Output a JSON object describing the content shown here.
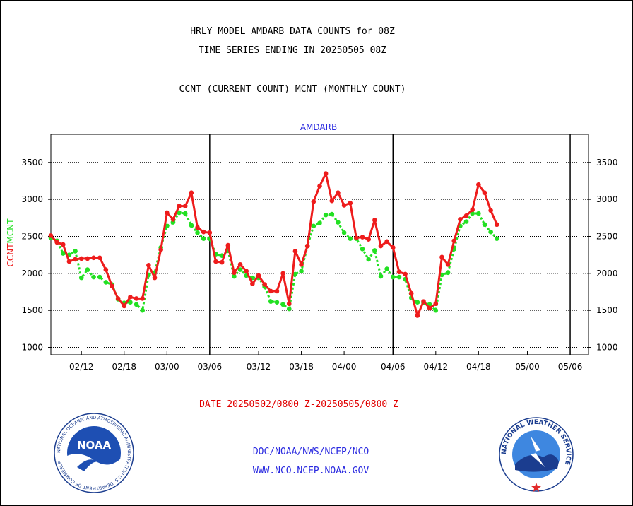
{
  "header": {
    "title_line1": "HRLY MODEL AMDARB DATA COUNTS for 08Z",
    "title_line2": "TIME SERIES ENDING IN 20250505 08Z",
    "legend_line": "CCNT (CURRENT COUNT) MCNT (MONTHLY COUNT)"
  },
  "footer": {
    "date_range": "DATE 20250502/0800 Z-20250505/0800 Z",
    "org": "DOC/NOAA/NWS/NCEP/NCO",
    "url": "WWW.NCO.NCEP.NOAA.GOV"
  },
  "logos": {
    "noaa_logo_text": "NOAA",
    "noaa_ring_text": "NATIONAL OCEANIC AND ATMOSPHERIC ADMINISTRATION U.S. DEPARTMENT OF COMMERCE",
    "nws_ring_text": "NATIONAL WEATHER SERVICE"
  },
  "chart_data": {
    "type": "line",
    "title": "AMDARB",
    "ylabel_parts": [
      "CCNT",
      "MCNT"
    ],
    "ylim": [
      900,
      3880
    ],
    "yticks": [
      1000,
      1500,
      2000,
      2500,
      3000,
      3500
    ],
    "xlim": [
      0,
      88
    ],
    "xticks": [
      {
        "x": 5,
        "label": "02/12"
      },
      {
        "x": 12,
        "label": "02/18"
      },
      {
        "x": 19,
        "label": "03/00"
      },
      {
        "x": 26,
        "label": "03/06"
      },
      {
        "x": 34,
        "label": "03/12"
      },
      {
        "x": 41,
        "label": "03/18"
      },
      {
        "x": 48,
        "label": "04/00"
      },
      {
        "x": 56,
        "label": "04/06"
      },
      {
        "x": 63,
        "label": "04/12"
      },
      {
        "x": 70,
        "label": "04/18"
      },
      {
        "x": 78,
        "label": "05/00"
      },
      {
        "x": 85,
        "label": "05/06"
      }
    ],
    "day_dividers": [
      26,
      56,
      85
    ],
    "grid": true,
    "colors": {
      "ccnt": "#ee1c1c",
      "mcnt": "#22e022",
      "title": "#2a2ae0"
    },
    "series": [
      {
        "name": "CCNT",
        "values": [
          2510,
          2420,
          2390,
          2160,
          2190,
          2200,
          2200,
          2210,
          2210,
          2050,
          1830,
          1660,
          1560,
          1680,
          1660,
          1660,
          2110,
          1940,
          2320,
          2820,
          2730,
          2910,
          2910,
          3090,
          2620,
          2560,
          2550,
          2160,
          2150,
          2380,
          2010,
          2120,
          2030,
          1860,
          1970,
          1850,
          1760,
          1760,
          2000,
          1590,
          2300,
          2120,
          2370,
          2970,
          3180,
          3350,
          2980,
          3090,
          2920,
          2950,
          2480,
          2490,
          2460,
          2720,
          2370,
          2430,
          2350,
          2020,
          1990,
          1730,
          1430,
          1620,
          1530,
          1590,
          2220,
          2120,
          2440,
          2730,
          2780,
          2860,
          3200,
          3090,
          2850,
          2660
        ]
      },
      {
        "name": "MCNT",
        "values": [
          2480,
          2440,
          2270,
          2250,
          2300,
          1940,
          2050,
          1950,
          1950,
          1880,
          1850,
          1650,
          1600,
          1610,
          1580,
          1500,
          1980,
          2010,
          2350,
          2640,
          2690,
          2820,
          2810,
          2650,
          2550,
          2470,
          2470,
          2260,
          2240,
          2310,
          1960,
          2050,
          1970,
          1940,
          1940,
          1820,
          1620,
          1610,
          1580,
          1520,
          1990,
          2030,
          2370,
          2640,
          2680,
          2790,
          2800,
          2690,
          2550,
          2470,
          2470,
          2330,
          2190,
          2310,
          1960,
          2060,
          1950,
          1950,
          1920,
          1670,
          1610,
          1600,
          1580,
          1500,
          1980,
          2010,
          2330,
          2640,
          2700,
          2810,
          2810,
          2660,
          2560,
          2470
        ]
      }
    ]
  }
}
